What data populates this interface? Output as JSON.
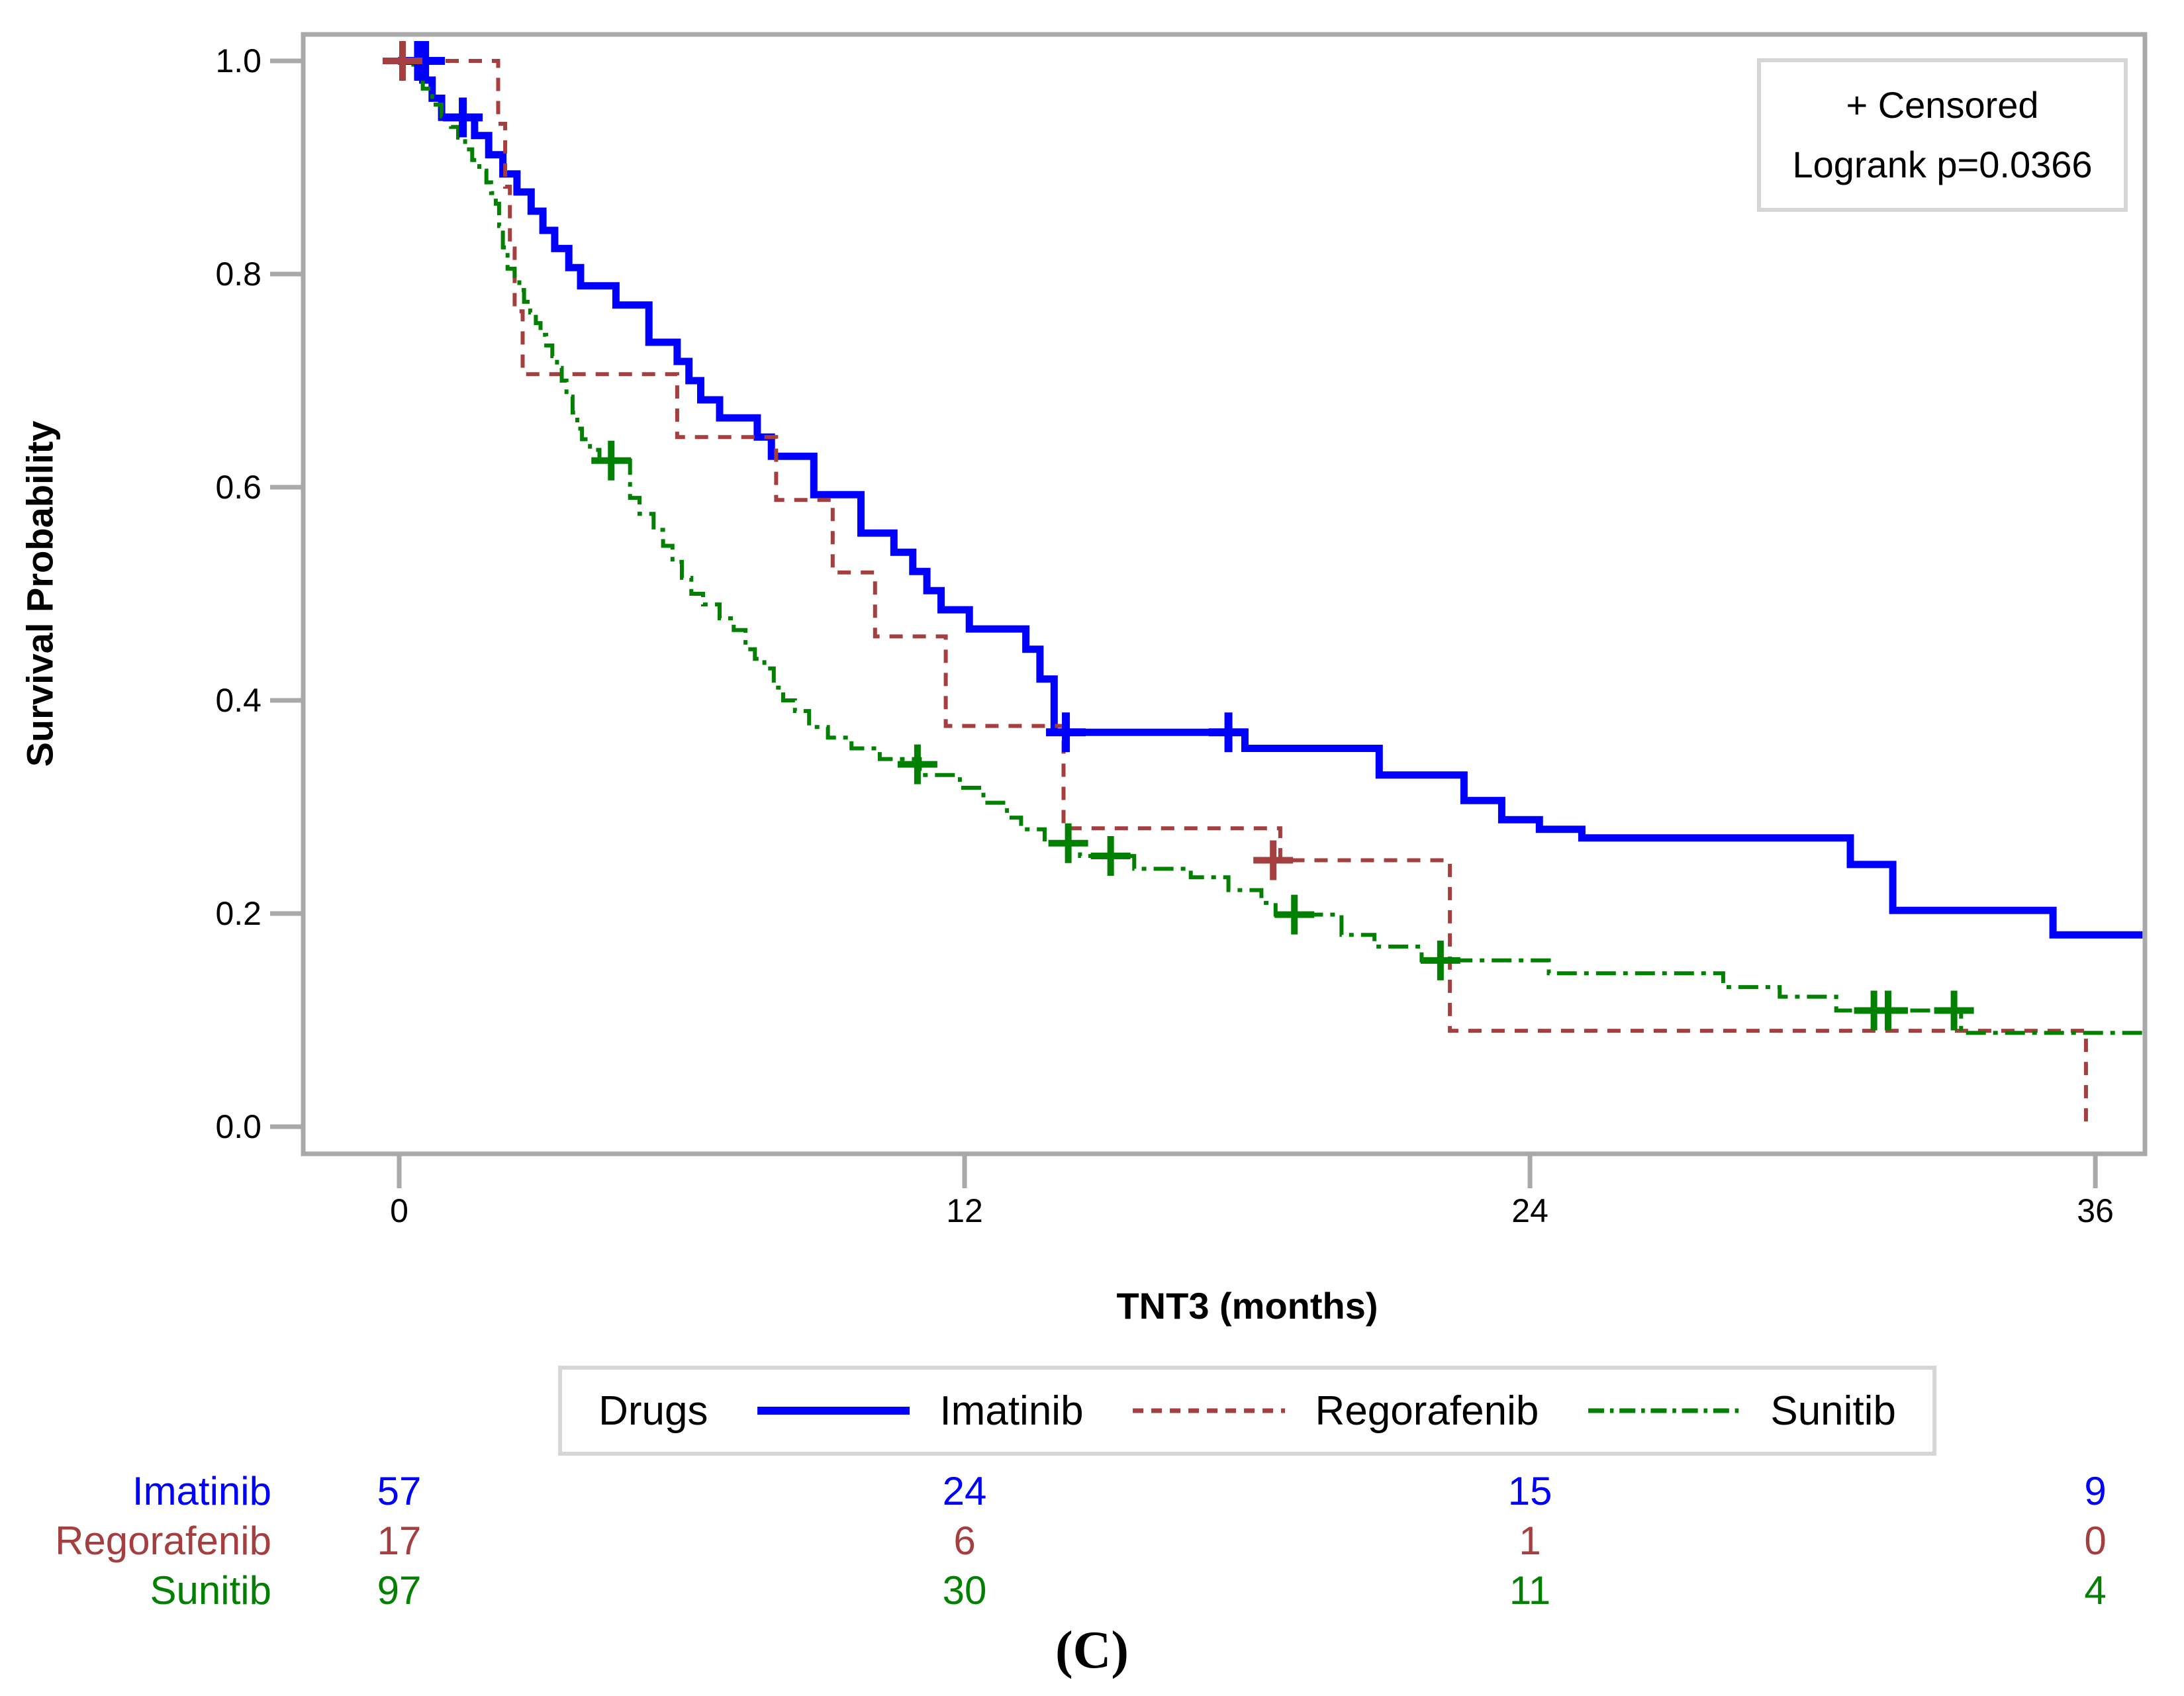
{
  "caption": "(C)",
  "inset": {
    "censored_label": "+ Censored",
    "logrank_label": "Logrank p=0.0366"
  },
  "legend": {
    "title": "Drugs"
  },
  "chart_data": {
    "type": "line",
    "subtype": "kaplan-meier-step",
    "title": "",
    "xlabel": "TNT3 (months)",
    "ylabel": "Survival Probability",
    "xlim": [
      0,
      37.1
    ],
    "ylim": [
      0,
      1.025
    ],
    "x_ticks": [
      0,
      12,
      24,
      36
    ],
    "y_ticks": [
      0.0,
      0.2,
      0.4,
      0.6,
      0.8,
      1.0
    ],
    "grid": false,
    "legend_position": "bottom",
    "frame_color": "#a9a9a9",
    "box_border_color": "#d6d6d6",
    "series": [
      {
        "name": "Imatinib",
        "color": "#0000fe",
        "dash": "solid",
        "line_width": 11,
        "end_t": 37.0,
        "points": [
          [
            0,
            1.0
          ],
          [
            0.5,
            0.982
          ],
          [
            0.7,
            0.965
          ],
          [
            0.9,
            0.947
          ],
          [
            1.6,
            0.93
          ],
          [
            1.9,
            0.912
          ],
          [
            2.2,
            0.894
          ],
          [
            2.5,
            0.877
          ],
          [
            2.8,
            0.859
          ],
          [
            3.05,
            0.841
          ],
          [
            3.3,
            0.824
          ],
          [
            3.6,
            0.806
          ],
          [
            3.85,
            0.789
          ],
          [
            4.6,
            0.771
          ],
          [
            5.3,
            0.736
          ],
          [
            5.9,
            0.718
          ],
          [
            6.15,
            0.7
          ],
          [
            6.4,
            0.682
          ],
          [
            6.8,
            0.665
          ],
          [
            7.6,
            0.647
          ],
          [
            7.9,
            0.629
          ],
          [
            8.8,
            0.593
          ],
          [
            9.8,
            0.557
          ],
          [
            10.5,
            0.539
          ],
          [
            10.9,
            0.521
          ],
          [
            11.2,
            0.503
          ],
          [
            11.5,
            0.485
          ],
          [
            12.1,
            0.467
          ],
          [
            13.3,
            0.448
          ],
          [
            13.6,
            0.42
          ],
          [
            13.9,
            0.37
          ],
          [
            17.95,
            0.355
          ],
          [
            20.8,
            0.33
          ],
          [
            22.6,
            0.306
          ],
          [
            23.4,
            0.288
          ],
          [
            24.2,
            0.279
          ],
          [
            25.1,
            0.271
          ],
          [
            30.8,
            0.246
          ],
          [
            31.7,
            0.203
          ],
          [
            35.1,
            0.18
          ]
        ],
        "censors": [
          [
            0.4,
            1.0
          ],
          [
            0.55,
            1.0
          ],
          [
            1.35,
            0.947
          ],
          [
            14.15,
            0.37
          ],
          [
            17.6,
            0.37
          ]
        ]
      },
      {
        "name": "Regorafenib",
        "color": "#a53e3e",
        "dash": "dash",
        "line_width": 6,
        "end_t": 35.85,
        "points": [
          [
            0,
            1.0
          ],
          [
            2.1,
            0.941
          ],
          [
            2.25,
            0.882
          ],
          [
            2.35,
            0.824
          ],
          [
            2.45,
            0.765
          ],
          [
            2.62,
            0.706
          ],
          [
            5.9,
            0.647
          ],
          [
            8.0,
            0.588
          ],
          [
            9.2,
            0.52
          ],
          [
            10.1,
            0.46
          ],
          [
            11.6,
            0.376
          ],
          [
            14.1,
            0.28
          ],
          [
            18.7,
            0.25
          ],
          [
            22.3,
            0.09
          ],
          [
            35.8,
            0.002
          ]
        ],
        "censors": [
          [
            0.07,
            1.0
          ],
          [
            18.55,
            0.25
          ]
        ]
      },
      {
        "name": "Sunitib",
        "color": "#028002",
        "dash": "dashdot",
        "line_width": 6,
        "end_t": 37.05,
        "points": [
          [
            0,
            1.0
          ],
          [
            0.3,
            0.99
          ],
          [
            0.5,
            0.974
          ],
          [
            0.7,
            0.959
          ],
          [
            0.9,
            0.948
          ],
          [
            1.1,
            0.938
          ],
          [
            1.25,
            0.928
          ],
          [
            1.4,
            0.917
          ],
          [
            1.55,
            0.907
          ],
          [
            1.7,
            0.897
          ],
          [
            1.85,
            0.886
          ],
          [
            1.95,
            0.876
          ],
          [
            2.05,
            0.866
          ],
          [
            2.12,
            0.845
          ],
          [
            2.2,
            0.825
          ],
          [
            2.3,
            0.805
          ],
          [
            2.45,
            0.795
          ],
          [
            2.55,
            0.785
          ],
          [
            2.65,
            0.774
          ],
          [
            2.78,
            0.764
          ],
          [
            2.9,
            0.754
          ],
          [
            3.0,
            0.743
          ],
          [
            3.12,
            0.733
          ],
          [
            3.25,
            0.723
          ],
          [
            3.35,
            0.712
          ],
          [
            3.45,
            0.7
          ],
          [
            3.55,
            0.685
          ],
          [
            3.68,
            0.67
          ],
          [
            3.78,
            0.655
          ],
          [
            3.88,
            0.645
          ],
          [
            4.05,
            0.635
          ],
          [
            4.25,
            0.625
          ],
          [
            4.9,
            0.59
          ],
          [
            5.1,
            0.575
          ],
          [
            5.4,
            0.56
          ],
          [
            5.6,
            0.545
          ],
          [
            5.8,
            0.53
          ],
          [
            6.0,
            0.515
          ],
          [
            6.2,
            0.5
          ],
          [
            6.45,
            0.49
          ],
          [
            6.8,
            0.477
          ],
          [
            7.1,
            0.466
          ],
          [
            7.35,
            0.448
          ],
          [
            7.55,
            0.439
          ],
          [
            7.75,
            0.43
          ],
          [
            7.95,
            0.412
          ],
          [
            8.15,
            0.4
          ],
          [
            8.4,
            0.39
          ],
          [
            8.7,
            0.375
          ],
          [
            9.1,
            0.365
          ],
          [
            9.6,
            0.355
          ],
          [
            10.2,
            0.345
          ],
          [
            11.05,
            0.33
          ],
          [
            11.9,
            0.318
          ],
          [
            12.4,
            0.304
          ],
          [
            12.9,
            0.29
          ],
          [
            13.2,
            0.279
          ],
          [
            13.7,
            0.266
          ],
          [
            14.45,
            0.254
          ],
          [
            15.6,
            0.242
          ],
          [
            16.8,
            0.234
          ],
          [
            17.6,
            0.222
          ],
          [
            18.3,
            0.21
          ],
          [
            18.6,
            0.199
          ],
          [
            20.0,
            0.18
          ],
          [
            20.7,
            0.169
          ],
          [
            21.7,
            0.156
          ],
          [
            24.4,
            0.144
          ],
          [
            28.1,
            0.131
          ],
          [
            29.3,
            0.122
          ],
          [
            30.5,
            0.109
          ],
          [
            33.15,
            0.088
          ]
        ],
        "censors": [
          [
            4.5,
            0.625
          ],
          [
            11.0,
            0.34
          ],
          [
            14.2,
            0.266
          ],
          [
            15.1,
            0.254
          ],
          [
            19.0,
            0.199
          ],
          [
            22.1,
            0.156
          ],
          [
            31.3,
            0.109
          ],
          [
            31.6,
            0.109
          ],
          [
            33.0,
            0.109
          ]
        ]
      }
    ],
    "at_risk": {
      "times": [
        0,
        12,
        24,
        36
      ],
      "rows": [
        {
          "name": "Imatinib",
          "color": "#0000fe",
          "values": [
            57,
            24,
            15,
            9
          ]
        },
        {
          "name": "Regorafenib",
          "color": "#a53e3e",
          "values": [
            17,
            6,
            1,
            0
          ]
        },
        {
          "name": "Sunitib",
          "color": "#028002",
          "values": [
            97,
            30,
            11,
            4
          ]
        }
      ]
    }
  }
}
